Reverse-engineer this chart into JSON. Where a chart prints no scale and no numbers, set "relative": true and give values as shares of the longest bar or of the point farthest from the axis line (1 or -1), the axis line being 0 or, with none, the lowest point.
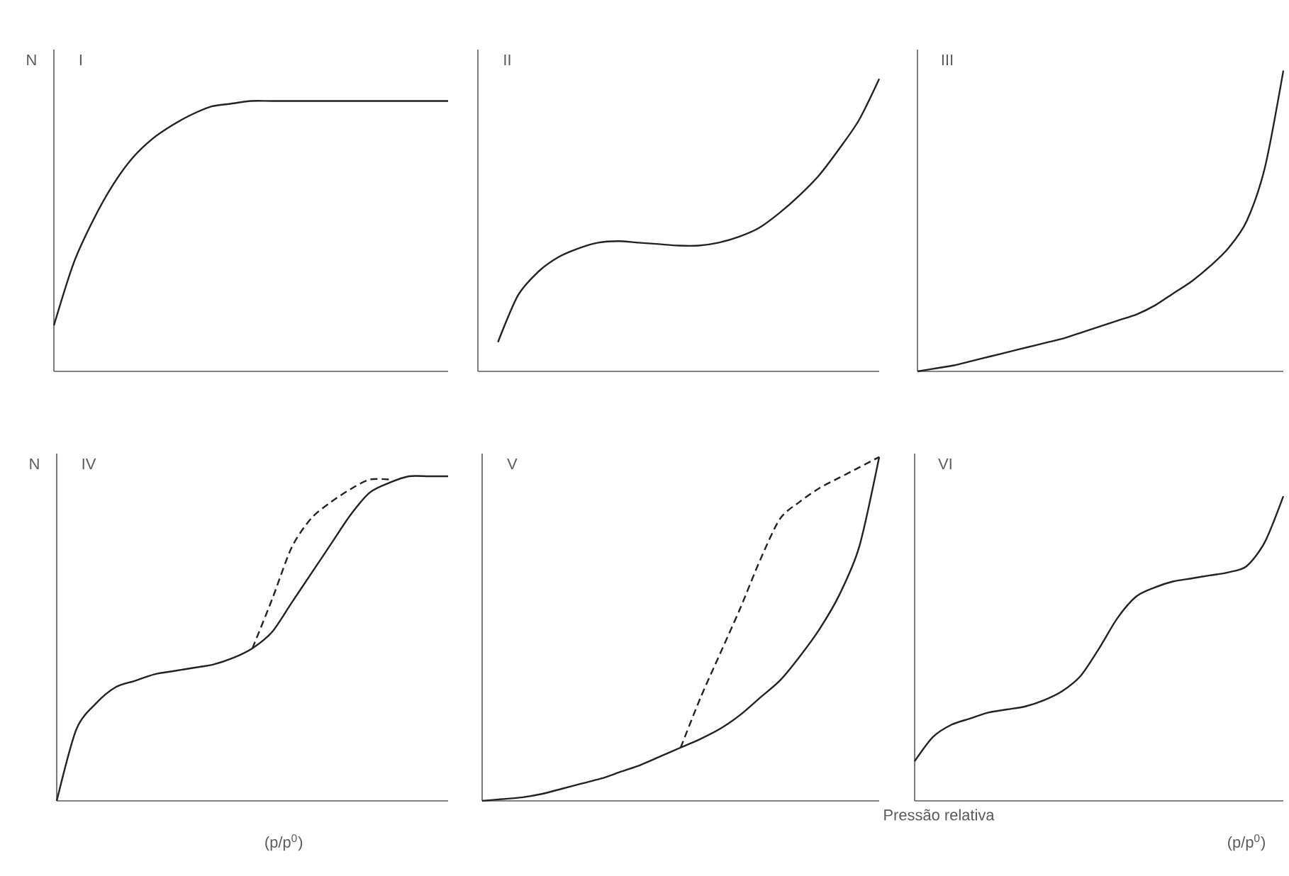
{
  "chart_data": [
    {
      "type": "line",
      "title": "I",
      "ylabel": "N",
      "relative": true,
      "categories": [
        null,
        null,
        null,
        null,
        null,
        null,
        null,
        null,
        null,
        null,
        null,
        null,
        null,
        null,
        null,
        null,
        null,
        null,
        null,
        null,
        null
      ],
      "series": [
        {
          "color": "#222222",
          "values": [
            0.17,
            0.4,
            0.56,
            0.69,
            0.79,
            0.86,
            0.91,
            0.95,
            0.98,
            0.99,
            1,
            1,
            1,
            1,
            1,
            1,
            1,
            1,
            1,
            1,
            1
          ]
        }
      ]
    },
    {
      "type": "line",
      "title": "II",
      "relative": true,
      "categories": [
        null,
        null,
        null,
        null,
        null,
        null,
        null,
        null,
        null,
        null,
        null,
        null,
        null,
        null,
        null,
        null,
        null,
        null,
        null,
        null,
        null
      ],
      "series": [
        {
          "color": "#222222",
          "values": [
            null,
            0.1,
            0.26,
            0.34,
            0.39,
            0.42,
            0.44,
            0.445,
            0.44,
            0.435,
            0.43,
            0.43,
            0.44,
            0.46,
            0.49,
            0.54,
            0.6,
            0.67,
            0.76,
            0.86,
            1.0
          ]
        }
      ]
    },
    {
      "type": "line",
      "title": "III",
      "relative": true,
      "categories": [
        null,
        null,
        null,
        null,
        null,
        null,
        null,
        null,
        null,
        null,
        null,
        null,
        null,
        null,
        null,
        null,
        null,
        null,
        null,
        null,
        null
      ],
      "series": [
        {
          "color": "#222222",
          "values": [
            0,
            0.01,
            0.02,
            0.035,
            0.05,
            0.065,
            0.08,
            0.095,
            0.11,
            0.13,
            0.15,
            0.17,
            0.19,
            0.22,
            0.26,
            0.3,
            0.35,
            0.41,
            0.5,
            0.68,
            1.0
          ]
        }
      ]
    },
    {
      "type": "line",
      "title": "IV",
      "ylabel": "N",
      "xlabel": "(p/p$^{0}$)",
      "relative": true,
      "categories": [
        null,
        null,
        null,
        null,
        null,
        null,
        null,
        null,
        null,
        null,
        null,
        null,
        null,
        null,
        null,
        null,
        null,
        null,
        null,
        null,
        null
      ],
      "series": [
        {
          "color": "#222222",
          "values": [
            0,
            0.22,
            0.3,
            0.35,
            0.37,
            0.39,
            0.4,
            0.41,
            0.42,
            0.44,
            0.47,
            0.52,
            0.61,
            0.7,
            0.79,
            0.88,
            0.95,
            0.98,
            1,
            1,
            1
          ]
        },
        {
          "color": "#222222",
          "line_style": "dashed",
          "values": [
            null,
            null,
            null,
            null,
            null,
            null,
            null,
            null,
            null,
            null,
            0.47,
            0.62,
            0.78,
            0.87,
            0.92,
            0.96,
            0.99,
            0.99,
            null,
            null,
            null
          ]
        }
      ]
    },
    {
      "type": "line",
      "title": "V",
      "xlabel": "Pressão relativa",
      "relative": true,
      "categories": [
        null,
        null,
        null,
        null,
        null,
        null,
        null,
        null,
        null,
        null,
        null,
        null,
        null,
        null,
        null,
        null,
        null,
        null,
        null,
        null,
        null
      ],
      "series": [
        {
          "color": "#222222",
          "values": [
            0,
            0.005,
            0.01,
            0.02,
            0.035,
            0.05,
            0.065,
            0.085,
            0.105,
            0.13,
            0.155,
            0.18,
            0.21,
            0.25,
            0.3,
            0.35,
            0.42,
            0.5,
            0.6,
            0.74,
            1
          ]
        },
        {
          "color": "#222222",
          "line_style": "dashed",
          "values": [
            null,
            null,
            null,
            null,
            null,
            null,
            null,
            null,
            null,
            null,
            0.155,
            0.3,
            0.43,
            0.56,
            0.7,
            0.82,
            0.87,
            0.91,
            0.94,
            0.97,
            1
          ]
        }
      ]
    },
    {
      "type": "line",
      "title": "VI",
      "xlabel": "(p/p$^{0}$)",
      "relative": true,
      "categories": [
        null,
        null,
        null,
        null,
        null,
        null,
        null,
        null,
        null,
        null,
        null,
        null,
        null,
        null,
        null,
        null,
        null,
        null,
        null,
        null,
        null
      ],
      "series": [
        {
          "color": "#222222",
          "values": [
            0.13,
            0.21,
            0.25,
            0.27,
            0.29,
            0.3,
            0.31,
            0.33,
            0.36,
            0.41,
            0.5,
            0.6,
            0.67,
            0.7,
            0.72,
            0.73,
            0.74,
            0.75,
            0.77,
            0.85,
            1
          ]
        }
      ]
    }
  ]
}
